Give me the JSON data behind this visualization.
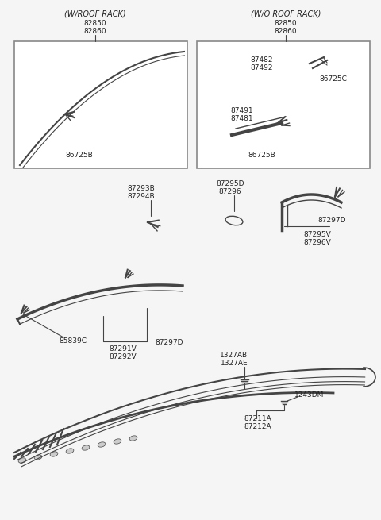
{
  "bg_color": "#f5f5f5",
  "box_bg": "#ffffff",
  "border_color": "#999999",
  "line_color": "#444444",
  "text_color": "#222222",
  "fig_width": 4.8,
  "fig_height": 6.55,
  "dpi": 100,
  "s1_left_title1": "(W/ROOF RACK)",
  "s1_left_title2": "82850",
  "s1_left_title3": "82860",
  "s1_left_label": "86725B",
  "s1_right_title1": "(W/O ROOF RACK)",
  "s1_right_title2": "82850",
  "s1_right_title3": "82860",
  "s1_right_la1": "87482",
  "s1_right_la2": "87492",
  "s1_right_la3": "86725C",
  "s1_right_lb1": "87491",
  "s1_right_lb2": "87481",
  "s1_right_lb3": "86725B",
  "s2_la1": "87293B",
  "s2_la2": "87294B",
  "s2_lb1": "87295D",
  "s2_lb2": "87296",
  "s2_lc": "87297D",
  "s2_ld1": "87295V",
  "s2_ld2": "87296V",
  "s3_la": "85839C",
  "s3_lb": "87297D",
  "s3_lc1": "87291V",
  "s3_lc2": "87292V",
  "s3_ld1": "1327AB",
  "s3_ld2": "1327AE",
  "s3_le": "1243DM",
  "s3_lf1": "87211A",
  "s3_lf2": "87212A",
  "font_small": 6.5,
  "font_italic": 7.0
}
